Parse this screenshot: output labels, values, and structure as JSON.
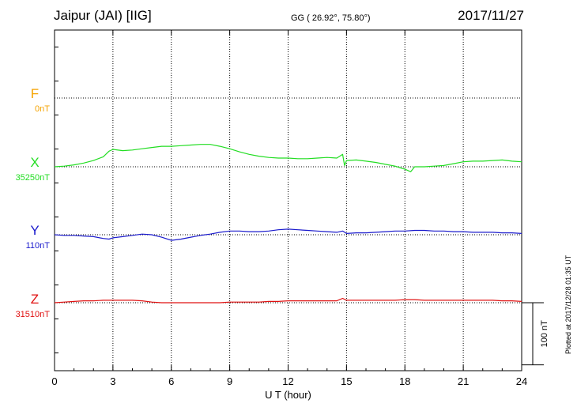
{
  "header": {
    "station": "Jaipur (JAI)  [IIG]",
    "coords": "GG ( 26.92°,  75.80°)",
    "date": "2017/11/27"
  },
  "footer": {
    "plotted": "Plotted at 2017/12/28 01:35 UT"
  },
  "colors": {
    "F": "#f5a300",
    "X": "#22dd22",
    "Y": "#1a1acc",
    "Z": "#e01010"
  },
  "chart_data": {
    "type": "line",
    "xlabel": "U T (hour)",
    "xlim": [
      0,
      24
    ],
    "x_ticks": [
      0,
      3,
      6,
      9,
      12,
      15,
      18,
      21,
      24
    ],
    "grid": true,
    "scale_bar": {
      "label": "100 nT",
      "value": 100
    },
    "series": [
      {
        "name": "F",
        "baseline_label": "0nT",
        "baseline": 0,
        "x": [],
        "y": []
      },
      {
        "name": "X",
        "baseline_label": "35250nT",
        "baseline": 35250,
        "x": [
          0,
          0.5,
          1,
          1.5,
          2,
          2.5,
          2.8,
          3,
          3.5,
          4,
          4.5,
          5,
          5.5,
          6,
          6.5,
          7,
          7.5,
          8,
          8.5,
          9,
          9.5,
          10,
          10.5,
          11,
          11.5,
          12,
          12.5,
          13,
          13.5,
          14,
          14.5,
          14.8,
          14.9,
          15,
          15.5,
          16,
          16.5,
          17,
          17.5,
          18,
          18.3,
          18.5,
          19,
          19.5,
          20,
          20.5,
          21,
          21.5,
          22,
          22.5,
          23,
          23.5,
          24
        ],
        "y": [
          35250,
          35251,
          35253,
          35256,
          35260,
          35266,
          35275,
          35278,
          35276,
          35277,
          35279,
          35281,
          35283,
          35283,
          35284,
          35285,
          35286,
          35286,
          35283,
          35279,
          35274,
          35270,
          35267,
          35265,
          35264,
          35264,
          35263,
          35263,
          35264,
          35265,
          35264,
          35270,
          35252,
          35260,
          35261,
          35259,
          35257,
          35254,
          35251,
          35246,
          35242,
          35250,
          35250,
          35251,
          35252,
          35255,
          35258,
          35259,
          35259,
          35260,
          35261,
          35259,
          35258
        ]
      },
      {
        "name": "Y",
        "baseline_label": "110nT",
        "baseline": 110,
        "x": [
          0,
          0.5,
          1,
          1.5,
          2,
          2.5,
          2.8,
          3,
          3.5,
          4,
          4.5,
          5,
          5.5,
          6,
          6.5,
          7,
          7.5,
          8,
          8.5,
          9,
          9.5,
          10,
          10.5,
          11,
          11.5,
          12,
          12.5,
          13,
          13.5,
          14,
          14.5,
          14.8,
          15,
          15.5,
          16,
          16.5,
          17,
          17.5,
          18,
          18.5,
          19,
          19.5,
          20,
          20.5,
          21,
          21.5,
          22,
          22.5,
          23,
          23.5,
          24
        ],
        "y": [
          110,
          109,
          109,
          108,
          107,
          104,
          103,
          105,
          107,
          109,
          111,
          110,
          106,
          101,
          103,
          106,
          109,
          111,
          114,
          116,
          116,
          115,
          115,
          116,
          118,
          119,
          118,
          117,
          116,
          115,
          114,
          116,
          112,
          113,
          113,
          114,
          115,
          116,
          116,
          117,
          117,
          116,
          116,
          115,
          115,
          114,
          114,
          114,
          113,
          113,
          112
        ]
      },
      {
        "name": "Z",
        "baseline_label": "31510nT",
        "baseline": 31510,
        "x": [
          0,
          0.5,
          1,
          1.5,
          2,
          2.5,
          3,
          3.5,
          4,
          4.5,
          5,
          5.5,
          6,
          6.5,
          7,
          7.5,
          8,
          8.5,
          9,
          9.5,
          10,
          10.5,
          11,
          11.5,
          12,
          12.5,
          13,
          13.5,
          14,
          14.5,
          14.8,
          15,
          15.5,
          16,
          16.5,
          17,
          17.5,
          18,
          18.5,
          19,
          19.5,
          20,
          20.5,
          21,
          21.5,
          22,
          22.5,
          23,
          23.5,
          24
        ],
        "y": [
          31510,
          31511,
          31512,
          31513,
          31513,
          31514,
          31514,
          31514,
          31514,
          31513,
          31511,
          31510,
          31510,
          31510,
          31510,
          31510,
          31510,
          31510,
          31511,
          31511,
          31511,
          31511,
          31512,
          31512,
          31513,
          31513,
          31513,
          31513,
          31513,
          31513,
          31517,
          31514,
          31514,
          31514,
          31514,
          31514,
          31514,
          31515,
          31515,
          31514,
          31514,
          31514,
          31514,
          31514,
          31514,
          31514,
          31514,
          31513,
          31513,
          31512
        ]
      }
    ]
  }
}
